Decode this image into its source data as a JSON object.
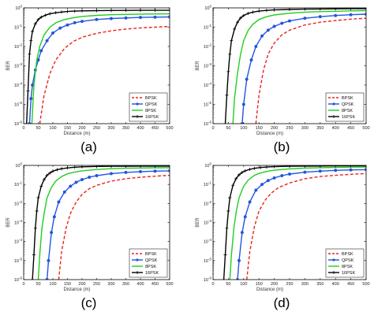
{
  "chart_data": [
    {
      "type": "line",
      "y_scale": "log",
      "xlim": [
        0,
        500
      ],
      "ylim": [
        1e-06,
        1
      ],
      "xticks": [
        "0",
        "50",
        "100",
        "150",
        "200",
        "250",
        "300",
        "350",
        "400",
        "450",
        "500"
      ],
      "yticks": [
        "10^-6",
        "10^-5",
        "10^-4",
        "10^-3",
        "10^-2",
        "10^-1",
        "10^0"
      ],
      "xlabel": "Distance (m)",
      "ylabel": "BER",
      "caption": "(a)",
      "legend_position": "bottom-right",
      "series": [
        {
          "name": "BPSK",
          "color": "#e8231e",
          "style": "dashed",
          "marker": "none",
          "x": [
            55,
            70,
            90,
            110,
            140,
            170,
            200,
            250,
            300,
            350,
            400,
            450,
            500
          ],
          "y": [
            1e-06,
            3e-05,
            0.0004,
            0.002,
            0.008,
            0.018,
            0.03,
            0.048,
            0.065,
            0.08,
            0.092,
            0.1,
            0.11
          ]
        },
        {
          "name": "QPSK",
          "color": "#2255dd",
          "style": "solid",
          "marker": "circle",
          "x": [
            20,
            25,
            30,
            40,
            50,
            60,
            80,
            100,
            125,
            150,
            175,
            200,
            250,
            300,
            350,
            400,
            450,
            500
          ],
          "y": [
            1e-06,
            2e-05,
            0.0001,
            0.0006,
            0.002,
            0.006,
            0.02,
            0.05,
            0.09,
            0.13,
            0.17,
            0.2,
            0.25,
            0.28,
            0.3,
            0.32,
            0.33,
            0.34
          ]
        },
        {
          "name": "8PSK",
          "color": "#22cc22",
          "style": "solid",
          "marker": "none",
          "x": [
            28,
            35,
            45,
            55,
            70,
            90,
            110,
            140,
            170,
            200,
            250,
            300,
            350,
            400,
            450,
            500
          ],
          "y": [
            1e-06,
            0.0001,
            0.002,
            0.01,
            0.04,
            0.1,
            0.17,
            0.25,
            0.31,
            0.36,
            0.41,
            0.44,
            0.46,
            0.475,
            0.485,
            0.49
          ]
        },
        {
          "name": "16PSK",
          "color": "#000000",
          "style": "solid",
          "marker": "plus",
          "x": [
            10,
            15,
            20,
            25,
            30,
            40,
            50,
            60,
            75,
            90,
            110,
            130,
            150,
            175,
            200,
            250,
            300,
            350,
            400,
            450,
            500
          ],
          "y": [
            1e-06,
            5e-05,
            0.004,
            0.02,
            0.06,
            0.15,
            0.25,
            0.33,
            0.42,
            0.5,
            0.56,
            0.61,
            0.65,
            0.68,
            0.7,
            0.72,
            0.73,
            0.74,
            0.745,
            0.75,
            0.75
          ]
        }
      ]
    },
    {
      "type": "line",
      "y_scale": "log",
      "xlim": [
        0,
        500
      ],
      "ylim": [
        1e-06,
        1
      ],
      "xticks": [
        "0",
        "50",
        "100",
        "150",
        "200",
        "250",
        "300",
        "350",
        "400",
        "450",
        "500"
      ],
      "yticks": [
        "10^-6",
        "10^-5",
        "10^-4",
        "10^-3",
        "10^-2",
        "10^-1",
        "10^0"
      ],
      "xlabel": "Distance (m)",
      "ylabel": "BER",
      "caption": "(b)",
      "legend_position": "bottom-right",
      "series": [
        {
          "name": "BPSK",
          "color": "#e8231e",
          "style": "dashed",
          "marker": "none",
          "x": [
            140,
            150,
            165,
            180,
            200,
            225,
            250,
            300,
            350,
            400,
            450,
            500
          ],
          "y": [
            1e-06,
            3e-05,
            0.0006,
            0.004,
            0.015,
            0.04,
            0.07,
            0.13,
            0.18,
            0.22,
            0.26,
            0.29
          ]
        },
        {
          "name": "QPSK",
          "color": "#2255dd",
          "style": "solid",
          "marker": "circle",
          "x": [
            95,
            100,
            110,
            125,
            140,
            160,
            180,
            200,
            225,
            250,
            300,
            350,
            400,
            450,
            500
          ],
          "y": [
            1e-06,
            1e-05,
            0.0002,
            0.002,
            0.01,
            0.035,
            0.07,
            0.11,
            0.16,
            0.21,
            0.29,
            0.35,
            0.4,
            0.44,
            0.47
          ]
        },
        {
          "name": "8PSK",
          "color": "#22cc22",
          "style": "solid",
          "marker": "none",
          "x": [
            65,
            70,
            80,
            90,
            100,
            115,
            130,
            150,
            175,
            200,
            250,
            300,
            350,
            400,
            450,
            500
          ],
          "y": [
            1e-06,
            2e-05,
            0.0004,
            0.004,
            0.02,
            0.07,
            0.14,
            0.25,
            0.35,
            0.43,
            0.53,
            0.6,
            0.64,
            0.67,
            0.7,
            0.72
          ]
        },
        {
          "name": "16PSK",
          "color": "#000000",
          "style": "solid",
          "marker": "plus",
          "x": [
            40,
            45,
            50,
            55,
            60,
            70,
            80,
            90,
            100,
            115,
            130,
            150,
            175,
            200,
            250,
            300,
            350,
            400,
            450,
            500
          ],
          "y": [
            1e-06,
            3e-05,
            0.0005,
            0.004,
            0.02,
            0.08,
            0.18,
            0.3,
            0.4,
            0.52,
            0.6,
            0.68,
            0.74,
            0.78,
            0.83,
            0.86,
            0.88,
            0.89,
            0.9,
            0.9
          ]
        }
      ]
    },
    {
      "type": "line",
      "y_scale": "log",
      "xlim": [
        0,
        500
      ],
      "ylim": [
        1e-06,
        1
      ],
      "xticks": [
        "0",
        "50",
        "100",
        "150",
        "200",
        "250",
        "300",
        "350",
        "400",
        "450",
        "500"
      ],
      "yticks": [
        "10^-6",
        "10^-5",
        "10^-4",
        "10^-3",
        "10^-2",
        "10^-1",
        "10^0"
      ],
      "xlabel": "Distance (m)",
      "ylabel": "BER",
      "caption": "(c)",
      "legend_position": "bottom-right",
      "series": [
        {
          "name": "BPSK",
          "color": "#e8231e",
          "style": "dashed",
          "marker": "none",
          "x": [
            120,
            130,
            145,
            160,
            180,
            200,
            225,
            250,
            300,
            350,
            400,
            450,
            500
          ],
          "y": [
            1e-06,
            3e-05,
            0.0005,
            0.003,
            0.012,
            0.03,
            0.06,
            0.09,
            0.15,
            0.2,
            0.24,
            0.27,
            0.3
          ]
        },
        {
          "name": "QPSK",
          "color": "#2255dd",
          "style": "solid",
          "marker": "circle",
          "x": [
            80,
            85,
            95,
            105,
            120,
            140,
            160,
            180,
            200,
            225,
            250,
            300,
            350,
            400,
            450,
            500
          ],
          "y": [
            1e-06,
            1e-05,
            0.0003,
            0.002,
            0.012,
            0.04,
            0.08,
            0.13,
            0.18,
            0.24,
            0.29,
            0.37,
            0.43,
            0.47,
            0.5,
            0.52
          ]
        },
        {
          "name": "8PSK",
          "color": "#22cc22",
          "style": "solid",
          "marker": "none",
          "x": [
            50,
            55,
            62,
            70,
            80,
            95,
            110,
            130,
            150,
            175,
            200,
            250,
            300,
            350,
            400,
            450,
            500
          ],
          "y": [
            1e-06,
            2e-05,
            0.0004,
            0.003,
            0.02,
            0.07,
            0.15,
            0.26,
            0.36,
            0.45,
            0.52,
            0.61,
            0.67,
            0.71,
            0.73,
            0.75,
            0.76
          ]
        },
        {
          "name": "16PSK",
          "color": "#000000",
          "style": "solid",
          "marker": "plus",
          "x": [
            30,
            35,
            40,
            45,
            50,
            60,
            70,
            80,
            90,
            100,
            115,
            130,
            150,
            175,
            200,
            250,
            300,
            350,
            400,
            450,
            500
          ],
          "y": [
            1e-06,
            2e-05,
            0.0005,
            0.004,
            0.02,
            0.08,
            0.18,
            0.3,
            0.4,
            0.5,
            0.6,
            0.67,
            0.74,
            0.8,
            0.84,
            0.88,
            0.9,
            0.91,
            0.92,
            0.92,
            0.92
          ]
        }
      ]
    },
    {
      "type": "line",
      "y_scale": "log",
      "xlim": [
        0,
        500
      ],
      "ylim": [
        1e-06,
        1
      ],
      "xticks": [
        "0",
        "50",
        "100",
        "150",
        "200",
        "250",
        "300",
        "350",
        "400",
        "450",
        "500"
      ],
      "yticks": [
        "10^-6",
        "10^-5",
        "10^-4",
        "10^-3",
        "10^-2",
        "10^-1",
        "10^0"
      ],
      "xlabel": "Distance (m)",
      "ylabel": "BER",
      "caption": "(d)",
      "legend_position": "bottom-right",
      "series": [
        {
          "name": "BPSK",
          "color": "#e8231e",
          "style": "dashed",
          "marker": "none",
          "x": [
            110,
            120,
            135,
            150,
            170,
            190,
            215,
            250,
            300,
            350,
            400,
            450,
            500
          ],
          "y": [
            1e-06,
            3e-05,
            0.0006,
            0.004,
            0.015,
            0.035,
            0.07,
            0.12,
            0.2,
            0.26,
            0.3,
            0.34,
            0.37
          ]
        },
        {
          "name": "QPSK",
          "color": "#2255dd",
          "style": "solid",
          "marker": "circle",
          "x": [
            80,
            85,
            95,
            105,
            120,
            140,
            160,
            180,
            200,
            225,
            250,
            300,
            350,
            400,
            450,
            500
          ],
          "y": [
            1e-06,
            1e-05,
            0.0003,
            0.002,
            0.012,
            0.05,
            0.1,
            0.16,
            0.22,
            0.29,
            0.35,
            0.44,
            0.5,
            0.55,
            0.58,
            0.6
          ]
        },
        {
          "name": "8PSK",
          "color": "#22cc22",
          "style": "solid",
          "marker": "none",
          "x": [
            55,
            60,
            68,
            76,
            85,
            100,
            115,
            135,
            155,
            180,
            200,
            250,
            300,
            350,
            400,
            450,
            500
          ],
          "y": [
            1e-06,
            2e-05,
            0.0005,
            0.004,
            0.02,
            0.08,
            0.17,
            0.3,
            0.4,
            0.5,
            0.56,
            0.66,
            0.72,
            0.76,
            0.79,
            0.81,
            0.82
          ]
        },
        {
          "name": "16PSK",
          "color": "#000000",
          "style": "solid",
          "marker": "plus",
          "x": [
            35,
            40,
            45,
            50,
            55,
            65,
            75,
            85,
            95,
            105,
            120,
            135,
            155,
            175,
            200,
            250,
            300,
            350,
            400,
            450,
            500
          ],
          "y": [
            1e-06,
            2e-05,
            0.0005,
            0.004,
            0.02,
            0.09,
            0.2,
            0.32,
            0.43,
            0.52,
            0.62,
            0.7,
            0.77,
            0.82,
            0.86,
            0.9,
            0.92,
            0.93,
            0.94,
            0.94,
            0.95
          ]
        }
      ]
    }
  ]
}
